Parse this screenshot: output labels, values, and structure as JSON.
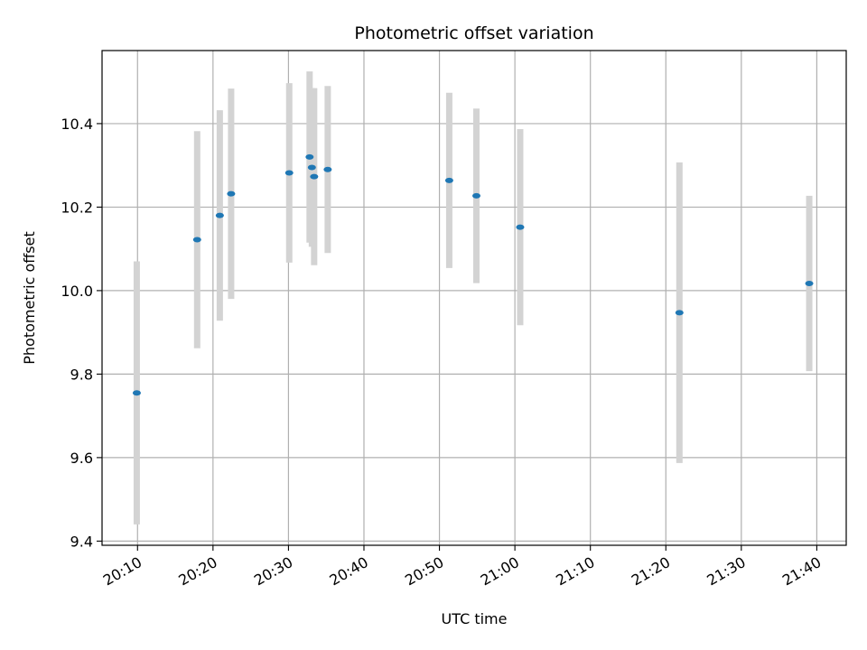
{
  "chart_data": {
    "type": "scatter",
    "title": "Photometric offset variation",
    "xlabel": "UTC time",
    "ylabel": "Photometric offset",
    "x_tick_labels": [
      "20:10",
      "20:20",
      "20:30",
      "20:40",
      "20:50",
      "21:00",
      "21:10",
      "21:20",
      "21:30",
      "21:40"
    ],
    "x_tick_minutes": [
      0,
      10,
      20,
      30,
      40,
      50,
      60,
      70,
      80,
      90
    ],
    "xlim_times": [
      "20:05:18",
      "21:43:54"
    ],
    "y_tick_labels": [
      "9.4",
      "9.6",
      "9.8",
      "10.0",
      "10.2",
      "10.4"
    ],
    "y_ticks": [
      9.4,
      9.6,
      9.8,
      10.0,
      10.2,
      10.4
    ],
    "ylim": [
      9.39,
      10.575
    ],
    "grid": true,
    "marker_color": "#1f77b4",
    "errorbar_color": "#d3d3d3",
    "points": [
      {
        "time": "20:09:54",
        "y": 9.755,
        "err": 0.315
      },
      {
        "time": "20:17:54",
        "y": 10.122,
        "err": 0.26
      },
      {
        "time": "20:20:54",
        "y": 10.18,
        "err": 0.252
      },
      {
        "time": "20:22:24",
        "y": 10.232,
        "err": 0.252
      },
      {
        "time": "20:30:06",
        "y": 10.282,
        "err": 0.215
      },
      {
        "time": "20:32:48",
        "y": 10.32,
        "err": 0.205
      },
      {
        "time": "20:33:06",
        "y": 10.295,
        "err": 0.19
      },
      {
        "time": "20:33:24",
        "y": 10.273,
        "err": 0.212
      },
      {
        "time": "20:35:12",
        "y": 10.29,
        "err": 0.2
      },
      {
        "time": "20:51:18",
        "y": 10.264,
        "err": 0.21
      },
      {
        "time": "20:54:54",
        "y": 10.227,
        "err": 0.209
      },
      {
        "time": "21:00:42",
        "y": 10.152,
        "err": 0.235
      },
      {
        "time": "21:21:48",
        "y": 9.947,
        "err": 0.36
      },
      {
        "time": "21:39:00",
        "y": 10.017,
        "err": 0.21
      }
    ]
  }
}
